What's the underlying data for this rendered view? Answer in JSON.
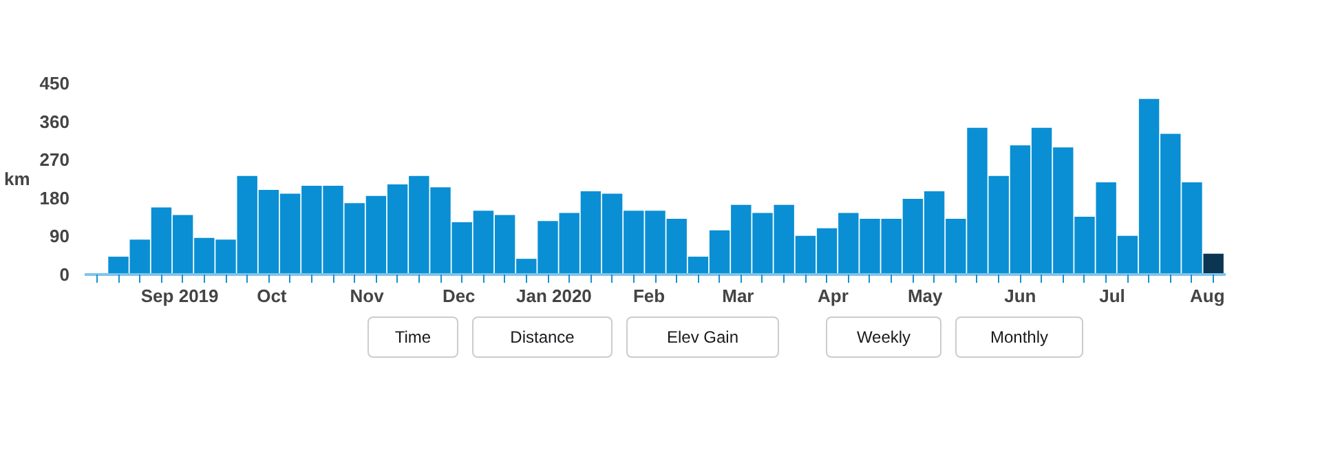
{
  "chart_data": [
    {
      "type": "bar",
      "ylabel": "km",
      "x": [
        "2019-08-05",
        "2019-08-12",
        "2019-08-19",
        "2019-08-26",
        "2019-09-02",
        "2019-09-09",
        "2019-09-16",
        "2019-09-23",
        "2019-09-30",
        "2019-10-07",
        "2019-10-14",
        "2019-10-21",
        "2019-10-28",
        "2019-11-04",
        "2019-11-11",
        "2019-11-18",
        "2019-11-25",
        "2019-12-02",
        "2019-12-09",
        "2019-12-16",
        "2019-12-23",
        "2019-12-30",
        "2020-01-06",
        "2020-01-13",
        "2020-01-20",
        "2020-01-27",
        "2020-02-03",
        "2020-02-10",
        "2020-02-17",
        "2020-02-24",
        "2020-03-02",
        "2020-03-09",
        "2020-03-16",
        "2020-03-23",
        "2020-03-30",
        "2020-04-06",
        "2020-04-13",
        "2020-04-20",
        "2020-04-27",
        "2020-05-04",
        "2020-05-11",
        "2020-05-18",
        "2020-05-25",
        "2020-06-01",
        "2020-06-08",
        "2020-06-15",
        "2020-06-22",
        "2020-06-29",
        "2020-07-06",
        "2020-07-13",
        "2020-07-20",
        "2020-07-27",
        "2020-08-03"
      ],
      "values": [
        2,
        42,
        82,
        158,
        140,
        86,
        82,
        232,
        199,
        190,
        209,
        209,
        168,
        185,
        212,
        232,
        205,
        123,
        150,
        140,
        37,
        126,
        145,
        196,
        190,
        150,
        150,
        131,
        42,
        104,
        164,
        145,
        164,
        91,
        109,
        145,
        131,
        131,
        178,
        196,
        131,
        345,
        232,
        304,
        345,
        299,
        136,
        217,
        91,
        413,
        331,
        217,
        49
      ],
      "colors": [
        "#0a8fd4",
        "#0a8fd4",
        "#0a8fd4",
        "#0a8fd4",
        "#0a8fd4",
        "#0a8fd4",
        "#0a8fd4",
        "#0a8fd4",
        "#0a8fd4",
        "#0a8fd4",
        "#0a8fd4",
        "#0a8fd4",
        "#0a8fd4",
        "#0a8fd4",
        "#0a8fd4",
        "#0a8fd4",
        "#0a8fd4",
        "#0a8fd4",
        "#0a8fd4",
        "#0a8fd4",
        "#0a8fd4",
        "#0a8fd4",
        "#0a8fd4",
        "#0a8fd4",
        "#0a8fd4",
        "#0a8fd4",
        "#0a8fd4",
        "#0a8fd4",
        "#0a8fd4",
        "#0a8fd4",
        "#0a8fd4",
        "#0a8fd4",
        "#0a8fd4",
        "#0a8fd4",
        "#0a8fd4",
        "#0a8fd4",
        "#0a8fd4",
        "#0a8fd4",
        "#0a8fd4",
        "#0a8fd4",
        "#0a8fd4",
        "#0a8fd4",
        "#0a8fd4",
        "#0a8fd4",
        "#0a8fd4",
        "#0a8fd4",
        "#0a8fd4",
        "#0a8fd4",
        "#0a8fd4",
        "#0a8fd4",
        "#0a8fd4",
        "#0a8fd4",
        "#0b3550"
      ],
      "ylim": [
        0,
        450
      ],
      "yticks": [
        0,
        90,
        180,
        270,
        360,
        450
      ],
      "xlim": [
        "2019-08-01",
        "2020-08-07"
      ],
      "xticks": [
        {
          "value": "2019-09-01",
          "label": "Sep 2019"
        },
        {
          "value": "2019-10-01",
          "label": "Oct"
        },
        {
          "value": "2019-11-01",
          "label": "Nov"
        },
        {
          "value": "2019-12-01",
          "label": "Dec"
        },
        {
          "value": "2020-01-01",
          "label": "Jan 2020"
        },
        {
          "value": "2020-02-01",
          "label": "Feb"
        },
        {
          "value": "2020-03-01",
          "label": "Mar"
        },
        {
          "value": "2020-04-01",
          "label": "Apr"
        },
        {
          "value": "2020-05-01",
          "label": "May"
        },
        {
          "value": "2020-06-01",
          "label": "Jun"
        },
        {
          "value": "2020-07-01",
          "label": "Jul"
        },
        {
          "value": "2020-08-01",
          "label": "Aug"
        }
      ],
      "grid": false
    },
    {
      "type": "other",
      "annotations": [
        "Time",
        "Distance",
        "Elev Gain",
        "Weekly",
        "Monthly"
      ]
    }
  ]
}
